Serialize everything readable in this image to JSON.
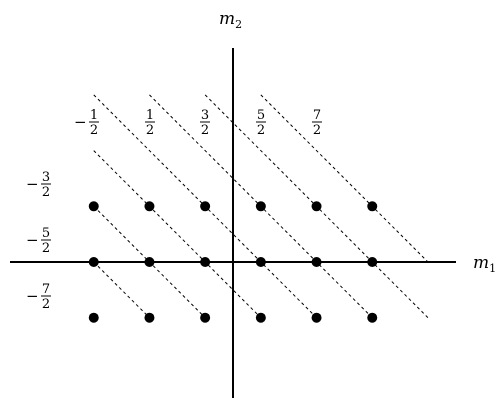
{
  "axes": {
    "horizontal": {
      "label": "m",
      "subscript": "1"
    },
    "vertical": {
      "label": "m",
      "subscript": "2"
    }
  },
  "top_labels": [
    {
      "sign": "−",
      "numerator": "1",
      "denominator": "2"
    },
    {
      "sign": "",
      "numerator": "1",
      "denominator": "2"
    },
    {
      "sign": "",
      "numerator": "3",
      "denominator": "2"
    },
    {
      "sign": "",
      "numerator": "5",
      "denominator": "2"
    },
    {
      "sign": "",
      "numerator": "7",
      "denominator": "2"
    }
  ],
  "left_labels": [
    {
      "sign": "−",
      "numerator": "3",
      "denominator": "2"
    },
    {
      "sign": "−",
      "numerator": "5",
      "denominator": "2"
    },
    {
      "sign": "−",
      "numerator": "7",
      "denominator": "2"
    }
  ],
  "points": [
    {
      "m1": -2.5,
      "m2": 1
    },
    {
      "m1": -1.5,
      "m2": 1
    },
    {
      "m1": -0.5,
      "m2": 1
    },
    {
      "m1": 0.5,
      "m2": 1
    },
    {
      "m1": 1.5,
      "m2": 1
    },
    {
      "m1": 2.5,
      "m2": 1
    },
    {
      "m1": -2.5,
      "m2": 0
    },
    {
      "m1": -1.5,
      "m2": 0
    },
    {
      "m1": -0.5,
      "m2": 0
    },
    {
      "m1": 0.5,
      "m2": 0
    },
    {
      "m1": 1.5,
      "m2": 0
    },
    {
      "m1": 2.5,
      "m2": 0
    },
    {
      "m1": -2.5,
      "m2": -1
    },
    {
      "m1": -1.5,
      "m2": -1
    },
    {
      "m1": -0.5,
      "m2": -1
    },
    {
      "m1": 0.5,
      "m2": -1
    },
    {
      "m1": 1.5,
      "m2": -1
    },
    {
      "m1": 2.5,
      "m2": -1
    }
  ],
  "diagonals": [
    {
      "sum": -0.5,
      "from_m1": -2.5,
      "to_m1": 0.5
    },
    {
      "sum": 0.5,
      "from_m1": -2.5,
      "to_m1": 1.5
    },
    {
      "sum": 1.5,
      "from_m1": -1.5,
      "to_m1": 2.5
    },
    {
      "sum": 2.5,
      "from_m1": -0.5,
      "to_m1": 3.5
    },
    {
      "sum": 3.5,
      "from_m1": 0.5,
      "to_m1": 3.5
    },
    {
      "sum": -1.5,
      "from_m1": -2.5,
      "to_m1": -0.5
    },
    {
      "sum": -2.5,
      "from_m1": -2.5,
      "to_m1": -1.5
    }
  ]
}
